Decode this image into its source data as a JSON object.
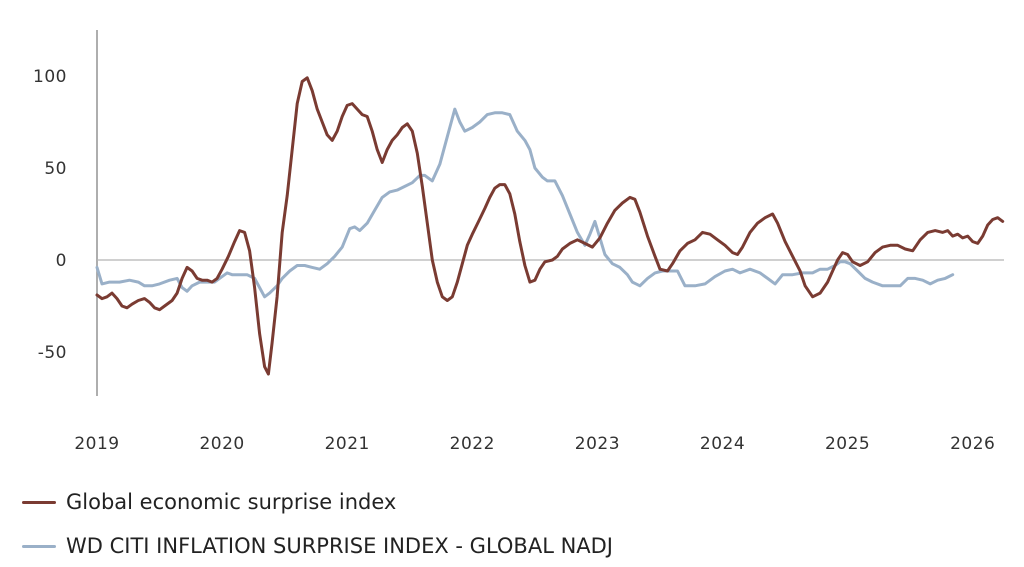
{
  "chart_data": {
    "type": "line",
    "title": "",
    "xlabel": "",
    "ylabel": "",
    "xlim": [
      2019.0,
      2026.25
    ],
    "ylim": [
      -75,
      123
    ],
    "y_ticks": [
      100,
      50,
      0,
      -50
    ],
    "y_tick_labels": [
      "100",
      "50",
      "0",
      "-50"
    ],
    "x_ticks": [
      2019,
      2020,
      2021,
      2022,
      2023,
      2024,
      2025,
      2026
    ],
    "x_tick_labels": [
      "2019",
      "2020",
      "2021",
      "2022",
      "2023",
      "2024",
      "2025",
      "2026"
    ],
    "zero_line": true,
    "legend_position": "bottom-left",
    "series": [
      {
        "name": "Global economic surprise index",
        "color": "#7a3b32",
        "points": [
          [
            2019.0,
            -19
          ],
          [
            2019.04,
            -21
          ],
          [
            2019.08,
            -20
          ],
          [
            2019.12,
            -18
          ],
          [
            2019.16,
            -21
          ],
          [
            2019.2,
            -25
          ],
          [
            2019.24,
            -26
          ],
          [
            2019.28,
            -24
          ],
          [
            2019.33,
            -22
          ],
          [
            2019.38,
            -21
          ],
          [
            2019.42,
            -23
          ],
          [
            2019.46,
            -26
          ],
          [
            2019.5,
            -27
          ],
          [
            2019.54,
            -25
          ],
          [
            2019.6,
            -22
          ],
          [
            2019.64,
            -18
          ],
          [
            2019.68,
            -10
          ],
          [
            2019.72,
            -4
          ],
          [
            2019.76,
            -6
          ],
          [
            2019.8,
            -10
          ],
          [
            2019.84,
            -11
          ],
          [
            2019.88,
            -11
          ],
          [
            2019.92,
            -12
          ],
          [
            2019.96,
            -10
          ],
          [
            2020.0,
            -5
          ],
          [
            2020.05,
            2
          ],
          [
            2020.1,
            10
          ],
          [
            2020.14,
            16
          ],
          [
            2020.18,
            15
          ],
          [
            2020.22,
            5
          ],
          [
            2020.26,
            -15
          ],
          [
            2020.3,
            -40
          ],
          [
            2020.34,
            -58
          ],
          [
            2020.37,
            -62
          ],
          [
            2020.4,
            -45
          ],
          [
            2020.44,
            -20
          ],
          [
            2020.48,
            15
          ],
          [
            2020.52,
            35
          ],
          [
            2020.56,
            60
          ],
          [
            2020.6,
            85
          ],
          [
            2020.64,
            97
          ],
          [
            2020.68,
            99
          ],
          [
            2020.72,
            92
          ],
          [
            2020.76,
            82
          ],
          [
            2020.8,
            75
          ],
          [
            2020.84,
            68
          ],
          [
            2020.88,
            65
          ],
          [
            2020.92,
            70
          ],
          [
            2020.96,
            78
          ],
          [
            2021.0,
            84
          ],
          [
            2021.04,
            85
          ],
          [
            2021.08,
            82
          ],
          [
            2021.12,
            79
          ],
          [
            2021.16,
            78
          ],
          [
            2021.2,
            70
          ],
          [
            2021.24,
            60
          ],
          [
            2021.28,
            53
          ],
          [
            2021.32,
            60
          ],
          [
            2021.36,
            65
          ],
          [
            2021.4,
            68
          ],
          [
            2021.44,
            72
          ],
          [
            2021.48,
            74
          ],
          [
            2021.52,
            70
          ],
          [
            2021.56,
            58
          ],
          [
            2021.6,
            40
          ],
          [
            2021.64,
            20
          ],
          [
            2021.68,
            0
          ],
          [
            2021.72,
            -12
          ],
          [
            2021.76,
            -20
          ],
          [
            2021.8,
            -22
          ],
          [
            2021.84,
            -20
          ],
          [
            2021.88,
            -12
          ],
          [
            2021.92,
            -2
          ],
          [
            2021.96,
            8
          ],
          [
            2022.0,
            14
          ],
          [
            2022.05,
            21
          ],
          [
            2022.1,
            28
          ],
          [
            2022.14,
            34
          ],
          [
            2022.18,
            39
          ],
          [
            2022.22,
            41
          ],
          [
            2022.26,
            41
          ],
          [
            2022.3,
            36
          ],
          [
            2022.34,
            25
          ],
          [
            2022.38,
            10
          ],
          [
            2022.42,
            -3
          ],
          [
            2022.46,
            -12
          ],
          [
            2022.5,
            -11
          ],
          [
            2022.54,
            -5
          ],
          [
            2022.58,
            -1
          ],
          [
            2022.64,
            0
          ],
          [
            2022.68,
            2
          ],
          [
            2022.72,
            6
          ],
          [
            2022.78,
            9
          ],
          [
            2022.84,
            11
          ],
          [
            2022.9,
            9
          ],
          [
            2022.96,
            7
          ],
          [
            2023.02,
            12
          ],
          [
            2023.08,
            20
          ],
          [
            2023.14,
            27
          ],
          [
            2023.2,
            31
          ],
          [
            2023.26,
            34
          ],
          [
            2023.3,
            33
          ],
          [
            2023.34,
            26
          ],
          [
            2023.4,
            13
          ],
          [
            2023.46,
            2
          ],
          [
            2023.5,
            -5
          ],
          [
            2023.56,
            -6
          ],
          [
            2023.6,
            -2
          ],
          [
            2023.66,
            5
          ],
          [
            2023.72,
            9
          ],
          [
            2023.78,
            11
          ],
          [
            2023.84,
            15
          ],
          [
            2023.9,
            14
          ],
          [
            2023.96,
            11
          ],
          [
            2024.02,
            8
          ],
          [
            2024.08,
            4
          ],
          [
            2024.12,
            3
          ],
          [
            2024.16,
            7
          ],
          [
            2024.22,
            15
          ],
          [
            2024.28,
            20
          ],
          [
            2024.34,
            23
          ],
          [
            2024.4,
            25
          ],
          [
            2024.44,
            20
          ],
          [
            2024.5,
            10
          ],
          [
            2024.56,
            2
          ],
          [
            2024.62,
            -6
          ],
          [
            2024.66,
            -14
          ],
          [
            2024.72,
            -20
          ],
          [
            2024.78,
            -18
          ],
          [
            2024.84,
            -12
          ],
          [
            2024.88,
            -6
          ],
          [
            2024.92,
            0
          ],
          [
            2024.96,
            4
          ],
          [
            2025.0,
            3
          ],
          [
            2025.04,
            -1
          ],
          [
            2025.1,
            -3
          ],
          [
            2025.16,
            -1
          ],
          [
            2025.22,
            4
          ],
          [
            2025.28,
            7
          ],
          [
            2025.34,
            8
          ],
          [
            2025.4,
            8
          ],
          [
            2025.46,
            6
          ],
          [
            2025.52,
            5
          ],
          [
            2025.58,
            11
          ],
          [
            2025.64,
            15
          ],
          [
            2025.7,
            16
          ],
          [
            2025.76,
            15
          ],
          [
            2025.8,
            16
          ],
          [
            2025.84,
            13
          ],
          [
            2025.88,
            14
          ],
          [
            2025.92,
            12
          ],
          [
            2025.96,
            13
          ],
          [
            2026.0,
            10
          ],
          [
            2026.04,
            9
          ],
          [
            2026.08,
            13
          ],
          [
            2026.12,
            19
          ],
          [
            2026.16,
            22
          ],
          [
            2026.2,
            23
          ],
          [
            2026.24,
            21
          ]
        ]
      },
      {
        "name": "WD CITI INFLATION SURPRISE INDEX - GLOBAL NADJ",
        "color": "#9ab0c8",
        "points": [
          [
            2019.0,
            -4
          ],
          [
            2019.04,
            -13
          ],
          [
            2019.1,
            -12
          ],
          [
            2019.18,
            -12
          ],
          [
            2019.26,
            -11
          ],
          [
            2019.33,
            -12
          ],
          [
            2019.38,
            -14
          ],
          [
            2019.44,
            -14
          ],
          [
            2019.5,
            -13
          ],
          [
            2019.58,
            -11
          ],
          [
            2019.64,
            -10
          ],
          [
            2019.68,
            -15
          ],
          [
            2019.72,
            -17
          ],
          [
            2019.76,
            -14
          ],
          [
            2019.82,
            -12
          ],
          [
            2019.88,
            -12
          ],
          [
            2019.94,
            -12
          ],
          [
            2020.0,
            -9
          ],
          [
            2020.04,
            -7
          ],
          [
            2020.08,
            -8
          ],
          [
            2020.14,
            -8
          ],
          [
            2020.2,
            -8
          ],
          [
            2020.26,
            -10
          ],
          [
            2020.3,
            -15
          ],
          [
            2020.34,
            -20
          ],
          [
            2020.38,
            -18
          ],
          [
            2020.44,
            -14
          ],
          [
            2020.48,
            -10
          ],
          [
            2020.54,
            -6
          ],
          [
            2020.6,
            -3
          ],
          [
            2020.66,
            -3
          ],
          [
            2020.72,
            -4
          ],
          [
            2020.78,
            -5
          ],
          [
            2020.84,
            -2
          ],
          [
            2020.9,
            2
          ],
          [
            2020.96,
            7
          ],
          [
            2021.02,
            17
          ],
          [
            2021.06,
            18
          ],
          [
            2021.1,
            16
          ],
          [
            2021.16,
            20
          ],
          [
            2021.22,
            27
          ],
          [
            2021.28,
            34
          ],
          [
            2021.34,
            37
          ],
          [
            2021.4,
            38
          ],
          [
            2021.46,
            40
          ],
          [
            2021.52,
            42
          ],
          [
            2021.58,
            46
          ],
          [
            2021.62,
            46
          ],
          [
            2021.68,
            43
          ],
          [
            2021.74,
            52
          ],
          [
            2021.8,
            67
          ],
          [
            2021.86,
            82
          ],
          [
            2021.9,
            75
          ],
          [
            2021.94,
            70
          ],
          [
            2022.0,
            72
          ],
          [
            2022.06,
            75
          ],
          [
            2022.12,
            79
          ],
          [
            2022.18,
            80
          ],
          [
            2022.24,
            80
          ],
          [
            2022.3,
            79
          ],
          [
            2022.36,
            70
          ],
          [
            2022.42,
            65
          ],
          [
            2022.46,
            60
          ],
          [
            2022.5,
            50
          ],
          [
            2022.56,
            45
          ],
          [
            2022.6,
            43
          ],
          [
            2022.66,
            43
          ],
          [
            2022.72,
            35
          ],
          [
            2022.78,
            25
          ],
          [
            2022.84,
            15
          ],
          [
            2022.9,
            8
          ],
          [
            2022.94,
            14
          ],
          [
            2022.98,
            21
          ],
          [
            2023.02,
            12
          ],
          [
            2023.06,
            3
          ],
          [
            2023.12,
            -2
          ],
          [
            2023.18,
            -4
          ],
          [
            2023.24,
            -8
          ],
          [
            2023.28,
            -12
          ],
          [
            2023.34,
            -14
          ],
          [
            2023.4,
            -10
          ],
          [
            2023.46,
            -7
          ],
          [
            2023.52,
            -6
          ],
          [
            2023.58,
            -6
          ],
          [
            2023.64,
            -6
          ],
          [
            2023.7,
            -14
          ],
          [
            2023.78,
            -14
          ],
          [
            2023.86,
            -13
          ],
          [
            2023.94,
            -9
          ],
          [
            2024.02,
            -6
          ],
          [
            2024.08,
            -5
          ],
          [
            2024.14,
            -7
          ],
          [
            2024.22,
            -5
          ],
          [
            2024.3,
            -7
          ],
          [
            2024.36,
            -10
          ],
          [
            2024.42,
            -13
          ],
          [
            2024.48,
            -8
          ],
          [
            2024.56,
            -8
          ],
          [
            2024.64,
            -7
          ],
          [
            2024.72,
            -7
          ],
          [
            2024.78,
            -5
          ],
          [
            2024.84,
            -5
          ],
          [
            2024.9,
            -3
          ],
          [
            2024.94,
            -1
          ],
          [
            2024.98,
            -1
          ],
          [
            2025.02,
            -2
          ],
          [
            2025.08,
            -6
          ],
          [
            2025.14,
            -10
          ],
          [
            2025.2,
            -12
          ],
          [
            2025.28,
            -14
          ],
          [
            2025.36,
            -14
          ],
          [
            2025.42,
            -14
          ],
          [
            2025.48,
            -10
          ],
          [
            2025.54,
            -10
          ],
          [
            2025.6,
            -11
          ],
          [
            2025.66,
            -13
          ],
          [
            2025.72,
            -11
          ],
          [
            2025.78,
            -10
          ],
          [
            2025.84,
            -8
          ]
        ]
      }
    ]
  }
}
